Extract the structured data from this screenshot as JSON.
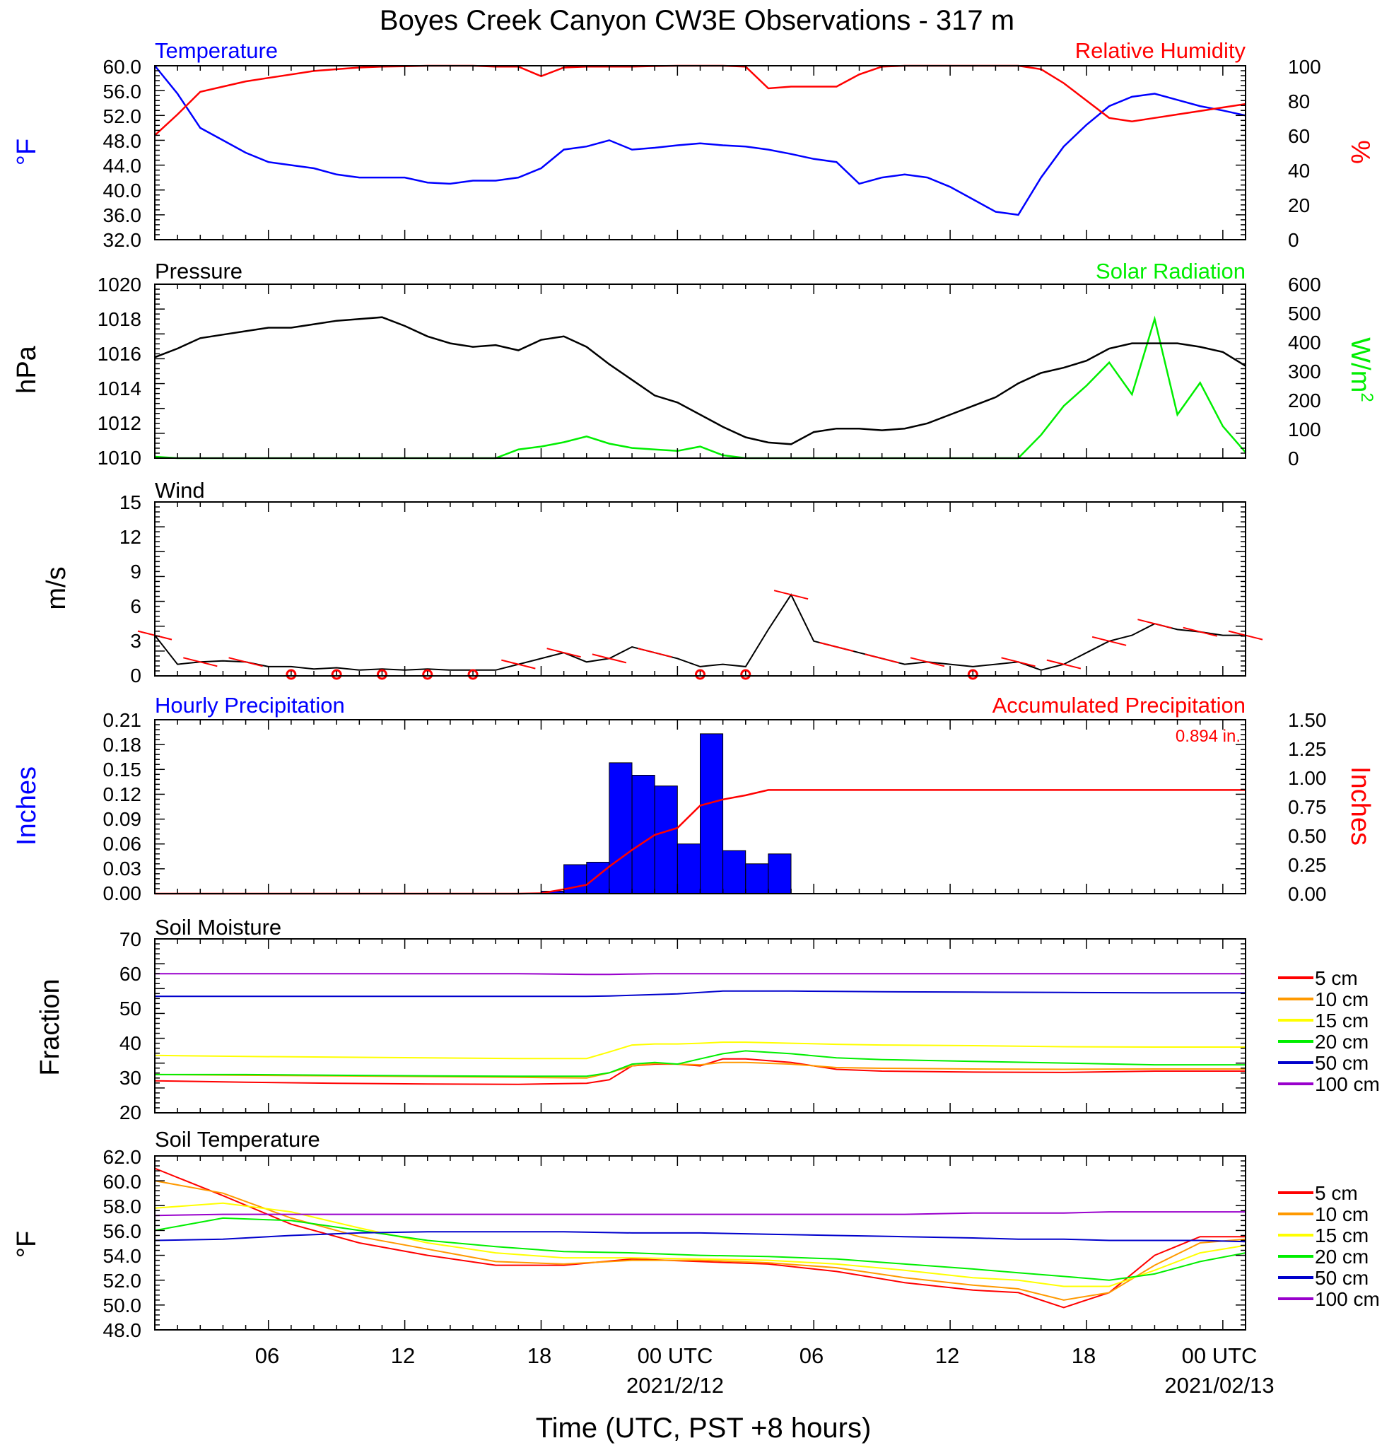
{
  "title": "Boyes Creek Canyon CW3E Observations - 317 m",
  "xlabel": "Time (UTC, PST +8 hours)",
  "x_ticks": [
    "06",
    "12",
    "18",
    "00 UTC",
    "06",
    "12",
    "18",
    "00 UTC"
  ],
  "x_dates": [
    "2021/2/12",
    "2021/02/13"
  ],
  "colors": {
    "temp": "#0000ff",
    "rh": "#ff0000",
    "pressure": "#000000",
    "solar": "#00ff00",
    "precip_bar": "#0000ff",
    "accum": "#ff0000"
  },
  "panels": {
    "temp_rh": {
      "left_title": "Temperature",
      "right_title": "Relative Humidity",
      "left_unit": "°F",
      "right_unit": "%",
      "left_ticks": [
        "60.0",
        "56.0",
        "52.0",
        "48.0",
        "44.0",
        "40.0",
        "36.0",
        "32.0"
      ],
      "right_ticks": [
        "100",
        "80",
        "60",
        "40",
        "20",
        "0"
      ]
    },
    "pressure_solar": {
      "left_title": "Pressure",
      "right_title": "Solar Radiation",
      "left_unit": "hPa",
      "right_unit": "W/m",
      "right_unit_sup": "2",
      "left_ticks": [
        "1020",
        "1018",
        "1016",
        "1014",
        "1012",
        "1010"
      ],
      "right_ticks": [
        "600",
        "500",
        "400",
        "300",
        "200",
        "100",
        "0"
      ]
    },
    "wind": {
      "title": "Wind",
      "unit": "m/s",
      "ticks": [
        "15",
        "12",
        "9",
        "6",
        "3",
        "0"
      ]
    },
    "precip": {
      "left_title": "Hourly Precipitation",
      "right_title": "Accumulated Precipitation",
      "total_label": "0.894 in.",
      "left_unit": "Inches",
      "right_unit": "Inches",
      "left_ticks": [
        "0.21",
        "0.18",
        "0.15",
        "0.12",
        "0.09",
        "0.06",
        "0.03",
        "0.00"
      ],
      "right_ticks": [
        "1.50",
        "1.25",
        "1.00",
        "0.75",
        "0.50",
        "0.25",
        "0.00"
      ]
    },
    "soil_moisture": {
      "title": "Soil Moisture",
      "unit": "Fraction",
      "ticks": [
        "70",
        "60",
        "50",
        "40",
        "30",
        "20"
      ]
    },
    "soil_temp": {
      "title": "Soil Temperature",
      "unit": "°F",
      "ticks": [
        "62.0",
        "60.0",
        "58.0",
        "56.0",
        "54.0",
        "52.0",
        "50.0",
        "48.0"
      ]
    }
  },
  "legend": [
    {
      "label": "5 cm",
      "color": "#ff0000"
    },
    {
      "label": "10 cm",
      "color": "#ff9900"
    },
    {
      "label": "15 cm",
      "color": "#ffff00"
    },
    {
      "label": "20 cm",
      "color": "#00ee00"
    },
    {
      "label": "50 cm",
      "color": "#0000cc"
    },
    {
      "label": "100 cm",
      "color": "#9900cc"
    }
  ],
  "chart_data": [
    {
      "type": "line",
      "title": "Temperature / Relative Humidity",
      "x_unit": "hours since 2021-02-11 01 UTC",
      "ylim": [
        32,
        60
      ],
      "y2lim": [
        0,
        100
      ],
      "series": [
        {
          "name": "Temperature",
          "unit": "°F",
          "x": [
            0,
            1,
            2,
            3,
            4,
            5,
            6,
            7,
            8,
            9,
            10,
            11,
            12,
            13,
            14,
            15,
            16,
            17,
            18,
            19,
            20,
            21,
            22,
            23,
            24,
            25,
            26,
            27,
            28,
            29,
            30,
            31,
            32,
            33,
            34,
            35,
            36,
            37,
            38,
            39,
            40,
            41,
            42,
            43,
            44,
            45,
            46,
            47,
            48
          ],
          "y": [
            60.0,
            55.5,
            50.0,
            48.0,
            46.0,
            44.5,
            44.0,
            43.5,
            42.5,
            42.0,
            42.0,
            42.0,
            41.2,
            41.0,
            41.5,
            41.5,
            42.0,
            43.5,
            46.5,
            47.0,
            48.0,
            46.5,
            46.8,
            47.2,
            47.5,
            47.2,
            47.0,
            46.5,
            45.8,
            45.0,
            44.5,
            41.0,
            42.0,
            42.5,
            42.0,
            40.5,
            38.5,
            36.5,
            36.0,
            42.0,
            47.0,
            50.5,
            53.5,
            55.0,
            55.5,
            54.5,
            53.5,
            52.8,
            52.0
          ]
        },
        {
          "name": "Relative Humidity",
          "unit": "%",
          "axis": "right",
          "x": [
            0,
            1,
            2,
            3,
            4,
            5,
            6,
            7,
            8,
            9,
            10,
            11,
            12,
            13,
            14,
            15,
            16,
            17,
            18,
            19,
            20,
            21,
            22,
            23,
            24,
            25,
            26,
            27,
            28,
            29,
            30,
            31,
            32,
            33,
            34,
            35,
            36,
            37,
            38,
            39,
            40,
            41,
            42,
            43,
            44,
            45,
            46,
            47,
            48
          ],
          "y": [
            60,
            72,
            85,
            88,
            91,
            93,
            95,
            97,
            98,
            99,
            99.5,
            99.7,
            100,
            100,
            100,
            99.5,
            99.5,
            94,
            99,
            99.5,
            99.5,
            99.5,
            99.8,
            100,
            100,
            100,
            99.5,
            87,
            88,
            88,
            88,
            95,
            99.5,
            100,
            100,
            100,
            100,
            100,
            100,
            98,
            90,
            80,
            70,
            68,
            70,
            72,
            74,
            76,
            78
          ]
        }
      ]
    },
    {
      "type": "line",
      "title": "Pressure / Solar Radiation",
      "ylim": [
        1010,
        1020
      ],
      "y2lim": [
        0,
        600
      ],
      "series": [
        {
          "name": "Pressure",
          "unit": "hPa",
          "x": [
            0,
            1,
            2,
            3,
            4,
            5,
            6,
            7,
            8,
            9,
            10,
            11,
            12,
            13,
            14,
            15,
            16,
            17,
            18,
            19,
            20,
            21,
            22,
            23,
            24,
            25,
            26,
            27,
            28,
            29,
            30,
            31,
            32,
            33,
            34,
            35,
            36,
            37,
            38,
            39,
            40,
            41,
            42,
            43,
            44,
            45,
            46,
            47,
            48
          ],
          "y": [
            1015.8,
            1016.3,
            1016.9,
            1017.1,
            1017.3,
            1017.5,
            1017.5,
            1017.7,
            1017.9,
            1018.0,
            1018.1,
            1017.6,
            1017.0,
            1016.6,
            1016.4,
            1016.5,
            1016.2,
            1016.8,
            1017.0,
            1016.4,
            1015.4,
            1014.5,
            1013.6,
            1013.2,
            1012.5,
            1011.8,
            1011.2,
            1010.9,
            1010.8,
            1011.5,
            1011.7,
            1011.7,
            1011.6,
            1011.7,
            1012.0,
            1012.5,
            1013.0,
            1013.5,
            1014.3,
            1014.9,
            1015.2,
            1015.6,
            1016.3,
            1016.6,
            1016.6,
            1016.6,
            1016.4,
            1016.1,
            1015.3
          ]
        },
        {
          "name": "Solar Radiation",
          "unit": "W/m2",
          "axis": "right",
          "x": [
            0,
            1,
            2,
            3,
            4,
            5,
            6,
            7,
            8,
            9,
            10,
            11,
            12,
            13,
            14,
            15,
            16,
            17,
            18,
            19,
            20,
            21,
            22,
            23,
            24,
            25,
            26,
            27,
            28,
            29,
            30,
            31,
            32,
            33,
            34,
            35,
            36,
            37,
            38,
            39,
            40,
            41,
            42,
            43,
            44,
            45,
            46,
            47,
            48
          ],
          "y": [
            5,
            0,
            0,
            0,
            0,
            0,
            0,
            0,
            0,
            0,
            0,
            0,
            0,
            0,
            0,
            0,
            30,
            40,
            55,
            75,
            50,
            35,
            30,
            25,
            40,
            10,
            0,
            0,
            0,
            0,
            0,
            0,
            0,
            0,
            0,
            0,
            0,
            0,
            0,
            80,
            180,
            250,
            330,
            220,
            480,
            150,
            260,
            110,
            20
          ]
        }
      ]
    },
    {
      "type": "line",
      "title": "Wind",
      "ylim": [
        0,
        15
      ],
      "series": [
        {
          "name": "Wind speed",
          "unit": "m/s",
          "x": [
            0,
            1,
            2,
            3,
            4,
            5,
            6,
            7,
            8,
            9,
            10,
            11,
            12,
            13,
            14,
            15,
            16,
            17,
            18,
            19,
            20,
            21,
            22,
            23,
            24,
            25,
            26,
            27,
            28,
            29,
            30,
            31,
            32,
            33,
            34,
            35,
            36,
            37,
            38,
            39,
            40,
            41,
            42,
            43,
            44,
            45,
            46,
            47,
            48
          ],
          "y": [
            3.5,
            1.0,
            1.2,
            1.3,
            1.2,
            0.8,
            0.8,
            0.6,
            0.7,
            0.5,
            0.6,
            0.5,
            0.6,
            0.5,
            0.5,
            0.5,
            1.0,
            1.5,
            2.0,
            1.2,
            1.5,
            2.5,
            2.0,
            1.5,
            0.8,
            1.0,
            0.8,
            4.0,
            7.0,
            3.0,
            2.5,
            2.0,
            1.5,
            1.0,
            1.2,
            1.0,
            0.8,
            1.0,
            1.2,
            0.5,
            1.0,
            2.0,
            3.0,
            3.5,
            4.5,
            4.0,
            3.8,
            3.5,
            3.5
          ]
        }
      ]
    },
    {
      "type": "bar",
      "title": "Hourly Precipitation",
      "ylim": [
        0,
        0.21
      ],
      "y2lim": [
        0,
        1.5
      ],
      "series": [
        {
          "name": "Hourly Precipitation",
          "unit": "in",
          "x": [
            17,
            18,
            19,
            20,
            21,
            22,
            23,
            24,
            25,
            26,
            27
          ],
          "y": [
            0.003,
            0.035,
            0.038,
            0.158,
            0.143,
            0.13,
            0.06,
            0.193,
            0.052,
            0.036,
            0.048
          ]
        },
        {
          "name": "Accumulated Precipitation",
          "type": "line",
          "unit": "in",
          "axis": "right",
          "x": [
            0,
            16,
            17,
            18,
            19,
            20,
            21,
            22,
            23,
            24,
            25,
            26,
            27,
            28,
            48
          ],
          "y": [
            0,
            0,
            0.003,
            0.038,
            0.076,
            0.234,
            0.377,
            0.507,
            0.567,
            0.76,
            0.812,
            0.848,
            0.894,
            0.894,
            0.894
          ]
        }
      ]
    },
    {
      "type": "line",
      "title": "Soil Moisture",
      "ylim": [
        20,
        70
      ],
      "x": [
        0,
        4,
        8,
        12,
        16,
        19,
        20,
        21,
        22,
        23,
        24,
        25,
        26,
        28,
        30,
        32,
        36,
        40,
        44,
        48
      ],
      "series": [
        {
          "name": "5 cm",
          "y": [
            29.2,
            28.8,
            28.5,
            28.3,
            28.2,
            28.5,
            29.5,
            33.5,
            34.0,
            34.0,
            33.5,
            35.5,
            35.5,
            34.5,
            32.5,
            32.0,
            31.7,
            31.6,
            32.0,
            32.0
          ]
        },
        {
          "name": "10 cm",
          "y": [
            31.0,
            30.8,
            30.6,
            30.4,
            30.2,
            30.0,
            31.5,
            33.5,
            34.2,
            34.0,
            33.8,
            34.5,
            34.5,
            34.0,
            33.0,
            32.8,
            32.6,
            32.5,
            32.6,
            32.6
          ]
        },
        {
          "name": "15 cm",
          "y": [
            36.5,
            36.2,
            36.0,
            35.8,
            35.6,
            35.6,
            37.5,
            39.5,
            39.8,
            39.8,
            40.0,
            40.3,
            40.3,
            40.0,
            39.7,
            39.5,
            39.3,
            39.0,
            38.9,
            38.9
          ]
        },
        {
          "name": "20 cm",
          "y": [
            31.0,
            31.0,
            30.8,
            30.6,
            30.5,
            30.5,
            31.5,
            34.0,
            34.5,
            34.0,
            35.5,
            37.0,
            37.8,
            37.0,
            35.8,
            35.3,
            34.8,
            34.3,
            33.8,
            33.8
          ]
        },
        {
          "name": "50 cm",
          "y": [
            53.5,
            53.5,
            53.5,
            53.5,
            53.5,
            53.5,
            53.6,
            53.8,
            54.0,
            54.2,
            54.6,
            55.0,
            55.0,
            55.0,
            54.9,
            54.8,
            54.7,
            54.6,
            54.5,
            54.5
          ]
        },
        {
          "name": "100 cm",
          "y": [
            60.0,
            60.0,
            60.0,
            60.0,
            60.0,
            59.8,
            59.8,
            59.9,
            60.0,
            60.0,
            60.0,
            60.0,
            60.0,
            60.0,
            60.0,
            60.0,
            60.0,
            60.0,
            60.0,
            60.0
          ]
        }
      ]
    },
    {
      "type": "line",
      "title": "Soil Temperature",
      "ylim": [
        48,
        62
      ],
      "x": [
        0,
        3,
        6,
        9,
        12,
        15,
        18,
        21,
        24,
        27,
        30,
        33,
        36,
        38,
        40,
        42,
        44,
        46,
        48
      ],
      "series": [
        {
          "name": "5 cm",
          "y": [
            61.0,
            58.8,
            56.5,
            55.0,
            54.0,
            53.2,
            53.2,
            53.7,
            53.5,
            53.3,
            52.7,
            51.8,
            51.2,
            51.0,
            49.8,
            51.0,
            54.0,
            55.5,
            55.5
          ]
        },
        {
          "name": "10 cm",
          "y": [
            60.0,
            59.0,
            57.0,
            55.5,
            54.5,
            53.5,
            53.3,
            53.6,
            53.6,
            53.4,
            53.0,
            52.2,
            51.6,
            51.3,
            50.4,
            51.0,
            53.2,
            55.0,
            55.3
          ]
        },
        {
          "name": "15 cm",
          "y": [
            57.8,
            58.2,
            57.5,
            56.2,
            55.0,
            54.2,
            53.8,
            53.8,
            53.7,
            53.6,
            53.3,
            52.8,
            52.2,
            52.0,
            51.5,
            51.5,
            52.8,
            54.2,
            54.8
          ]
        },
        {
          "name": "20 cm",
          "y": [
            56.0,
            57.0,
            56.8,
            56.0,
            55.2,
            54.7,
            54.3,
            54.2,
            54.0,
            53.9,
            53.7,
            53.3,
            52.9,
            52.6,
            52.3,
            52.0,
            52.5,
            53.5,
            54.2
          ]
        },
        {
          "name": "50 cm",
          "y": [
            55.2,
            55.3,
            55.6,
            55.8,
            55.9,
            55.9,
            55.9,
            55.8,
            55.8,
            55.7,
            55.6,
            55.5,
            55.4,
            55.3,
            55.3,
            55.2,
            55.2,
            55.2,
            55.1
          ]
        },
        {
          "name": "100 cm",
          "y": [
            57.2,
            57.3,
            57.3,
            57.3,
            57.3,
            57.3,
            57.3,
            57.3,
            57.3,
            57.3,
            57.3,
            57.3,
            57.4,
            57.4,
            57.4,
            57.5,
            57.5,
            57.5,
            57.5
          ]
        }
      ]
    }
  ]
}
